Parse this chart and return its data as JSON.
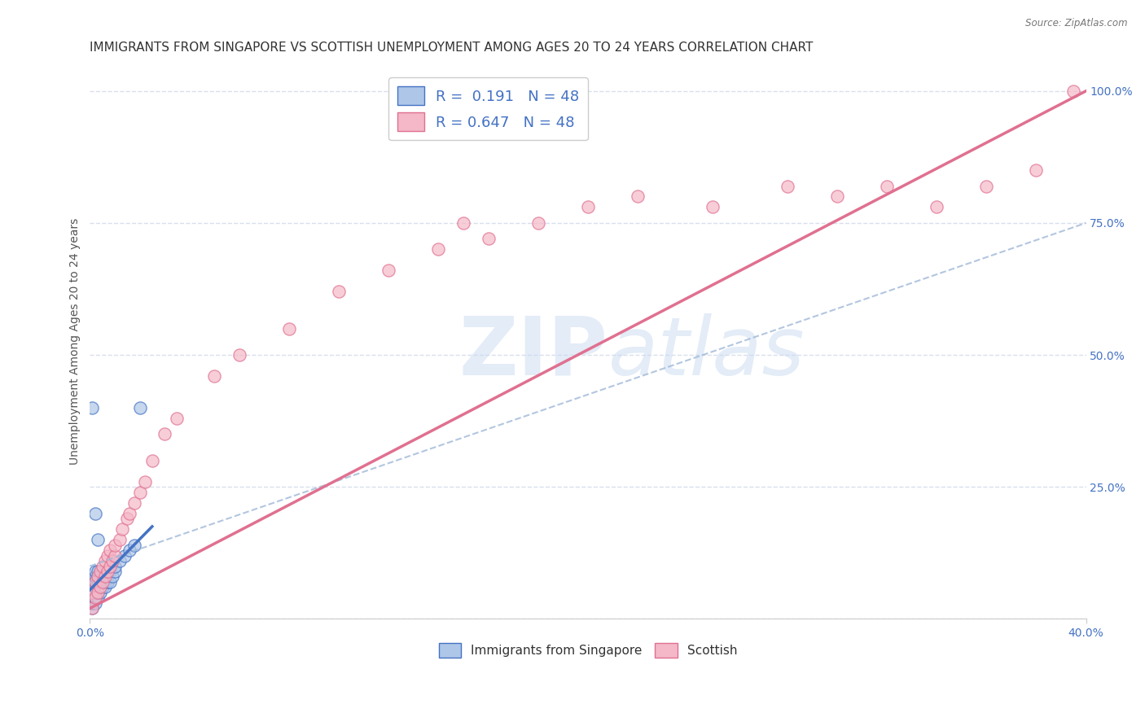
{
  "title": "IMMIGRANTS FROM SINGAPORE VS SCOTTISH UNEMPLOYMENT AMONG AGES 20 TO 24 YEARS CORRELATION CHART",
  "source": "Source: ZipAtlas.com",
  "ylabel": "Unemployment Among Ages 20 to 24 years",
  "xlim": [
    0.0,
    0.4
  ],
  "ylim": [
    0.0,
    1.05
  ],
  "xtick_positions": [
    0.0,
    0.4
  ],
  "xtick_labels": [
    "0.0%",
    "40.0%"
  ],
  "ytick_vals": [
    0.0,
    0.25,
    0.5,
    0.75,
    1.0
  ],
  "ytick_labels": [
    "",
    "25.0%",
    "50.0%",
    "75.0%",
    "100.0%"
  ],
  "R_blue": 0.191,
  "N_blue": 48,
  "R_pink": 0.647,
  "N_pink": 48,
  "blue_fill": "#aec6e8",
  "blue_edge": "#4472c4",
  "pink_fill": "#f4b8c8",
  "pink_edge": "#e07090",
  "pink_line_color": "#e07090",
  "blue_line_color": "#4472c4",
  "blue_dash_color": "#a0b8d8",
  "watermark_color": "#c8daf0",
  "legend_label_blue": "Immigrants from Singapore",
  "legend_label_pink": "Scottish",
  "background_color": "#ffffff",
  "grid_color": "#d0d8e8",
  "title_fontsize": 11,
  "axis_label_fontsize": 10,
  "tick_fontsize": 10,
  "blue_scatter_x": [
    0.001,
    0.001,
    0.001,
    0.001,
    0.001,
    0.001,
    0.001,
    0.001,
    0.002,
    0.002,
    0.002,
    0.002,
    0.002,
    0.002,
    0.002,
    0.002,
    0.002,
    0.003,
    0.003,
    0.003,
    0.003,
    0.003,
    0.003,
    0.004,
    0.004,
    0.004,
    0.004,
    0.005,
    0.005,
    0.005,
    0.006,
    0.006,
    0.006,
    0.007,
    0.007,
    0.008,
    0.008,
    0.009,
    0.01,
    0.01,
    0.012,
    0.014,
    0.016,
    0.018,
    0.02,
    0.001,
    0.002,
    0.003
  ],
  "blue_scatter_y": [
    0.02,
    0.03,
    0.03,
    0.04,
    0.04,
    0.05,
    0.06,
    0.07,
    0.03,
    0.04,
    0.04,
    0.05,
    0.05,
    0.06,
    0.07,
    0.08,
    0.09,
    0.04,
    0.05,
    0.06,
    0.07,
    0.08,
    0.09,
    0.05,
    0.06,
    0.07,
    0.08,
    0.06,
    0.07,
    0.08,
    0.06,
    0.07,
    0.08,
    0.07,
    0.08,
    0.07,
    0.09,
    0.08,
    0.09,
    0.1,
    0.11,
    0.12,
    0.13,
    0.14,
    0.4,
    0.4,
    0.2,
    0.15
  ],
  "pink_scatter_x": [
    0.001,
    0.001,
    0.002,
    0.002,
    0.003,
    0.003,
    0.004,
    0.004,
    0.005,
    0.005,
    0.006,
    0.006,
    0.007,
    0.007,
    0.008,
    0.008,
    0.009,
    0.01,
    0.01,
    0.012,
    0.013,
    0.015,
    0.016,
    0.018,
    0.02,
    0.022,
    0.025,
    0.03,
    0.035,
    0.05,
    0.06,
    0.08,
    0.1,
    0.12,
    0.14,
    0.16,
    0.18,
    0.2,
    0.22,
    0.25,
    0.28,
    0.3,
    0.32,
    0.34,
    0.36,
    0.38,
    0.395,
    0.15
  ],
  "pink_scatter_y": [
    0.02,
    0.05,
    0.04,
    0.07,
    0.05,
    0.08,
    0.06,
    0.09,
    0.07,
    0.1,
    0.08,
    0.11,
    0.09,
    0.12,
    0.1,
    0.13,
    0.11,
    0.12,
    0.14,
    0.15,
    0.17,
    0.19,
    0.2,
    0.22,
    0.24,
    0.26,
    0.3,
    0.35,
    0.38,
    0.46,
    0.5,
    0.55,
    0.62,
    0.66,
    0.7,
    0.72,
    0.75,
    0.78,
    0.8,
    0.78,
    0.82,
    0.8,
    0.82,
    0.78,
    0.82,
    0.85,
    1.0,
    0.75
  ]
}
